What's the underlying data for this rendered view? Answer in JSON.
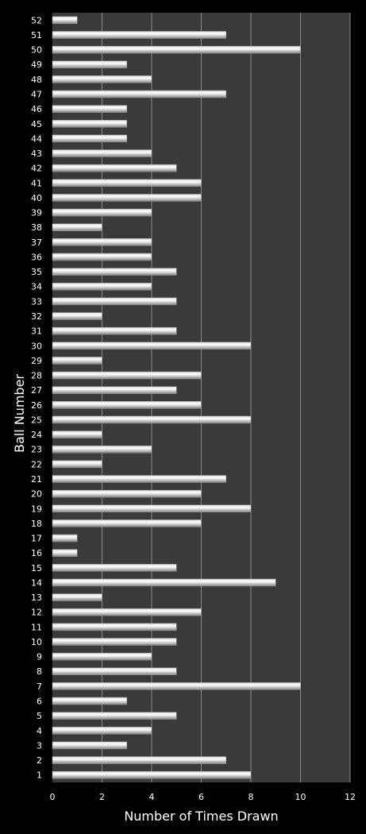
{
  "chart_data": {
    "type": "bar",
    "orientation": "horizontal",
    "title": "",
    "xlabel": "Number of Times Drawn",
    "ylabel": "Ball Number",
    "xlim": [
      0,
      12
    ],
    "xticks": [
      0,
      2,
      4,
      6,
      8,
      10,
      12
    ],
    "grid": true,
    "legend": "none",
    "colors": {
      "background": "#000000",
      "plot_area": "#3a3a3a",
      "grid": "#8a8a8a",
      "bar_light": "#ffffff",
      "bar_dark": "#8c8c8c",
      "text": "#ffffff"
    },
    "categories": [
      "1",
      "2",
      "3",
      "4",
      "5",
      "6",
      "7",
      "8",
      "9",
      "10",
      "11",
      "12",
      "13",
      "14",
      "15",
      "16",
      "17",
      "18",
      "19",
      "20",
      "21",
      "22",
      "23",
      "24",
      "25",
      "26",
      "27",
      "28",
      "29",
      "30",
      "31",
      "32",
      "33",
      "34",
      "35",
      "36",
      "37",
      "38",
      "39",
      "40",
      "41",
      "42",
      "43",
      "44",
      "45",
      "46",
      "47",
      "48",
      "49",
      "50",
      "51",
      "52"
    ],
    "values": [
      8,
      7,
      3,
      4,
      5,
      3,
      10,
      5,
      4,
      5,
      5,
      6,
      2,
      9,
      5,
      1,
      1,
      6,
      8,
      6,
      7,
      2,
      4,
      2,
      8,
      6,
      5,
      6,
      2,
      8,
      5,
      2,
      5,
      4,
      5,
      4,
      4,
      2,
      4,
      6,
      6,
      5,
      4,
      3,
      3,
      3,
      7,
      4,
      3,
      10,
      7,
      1
    ]
  }
}
